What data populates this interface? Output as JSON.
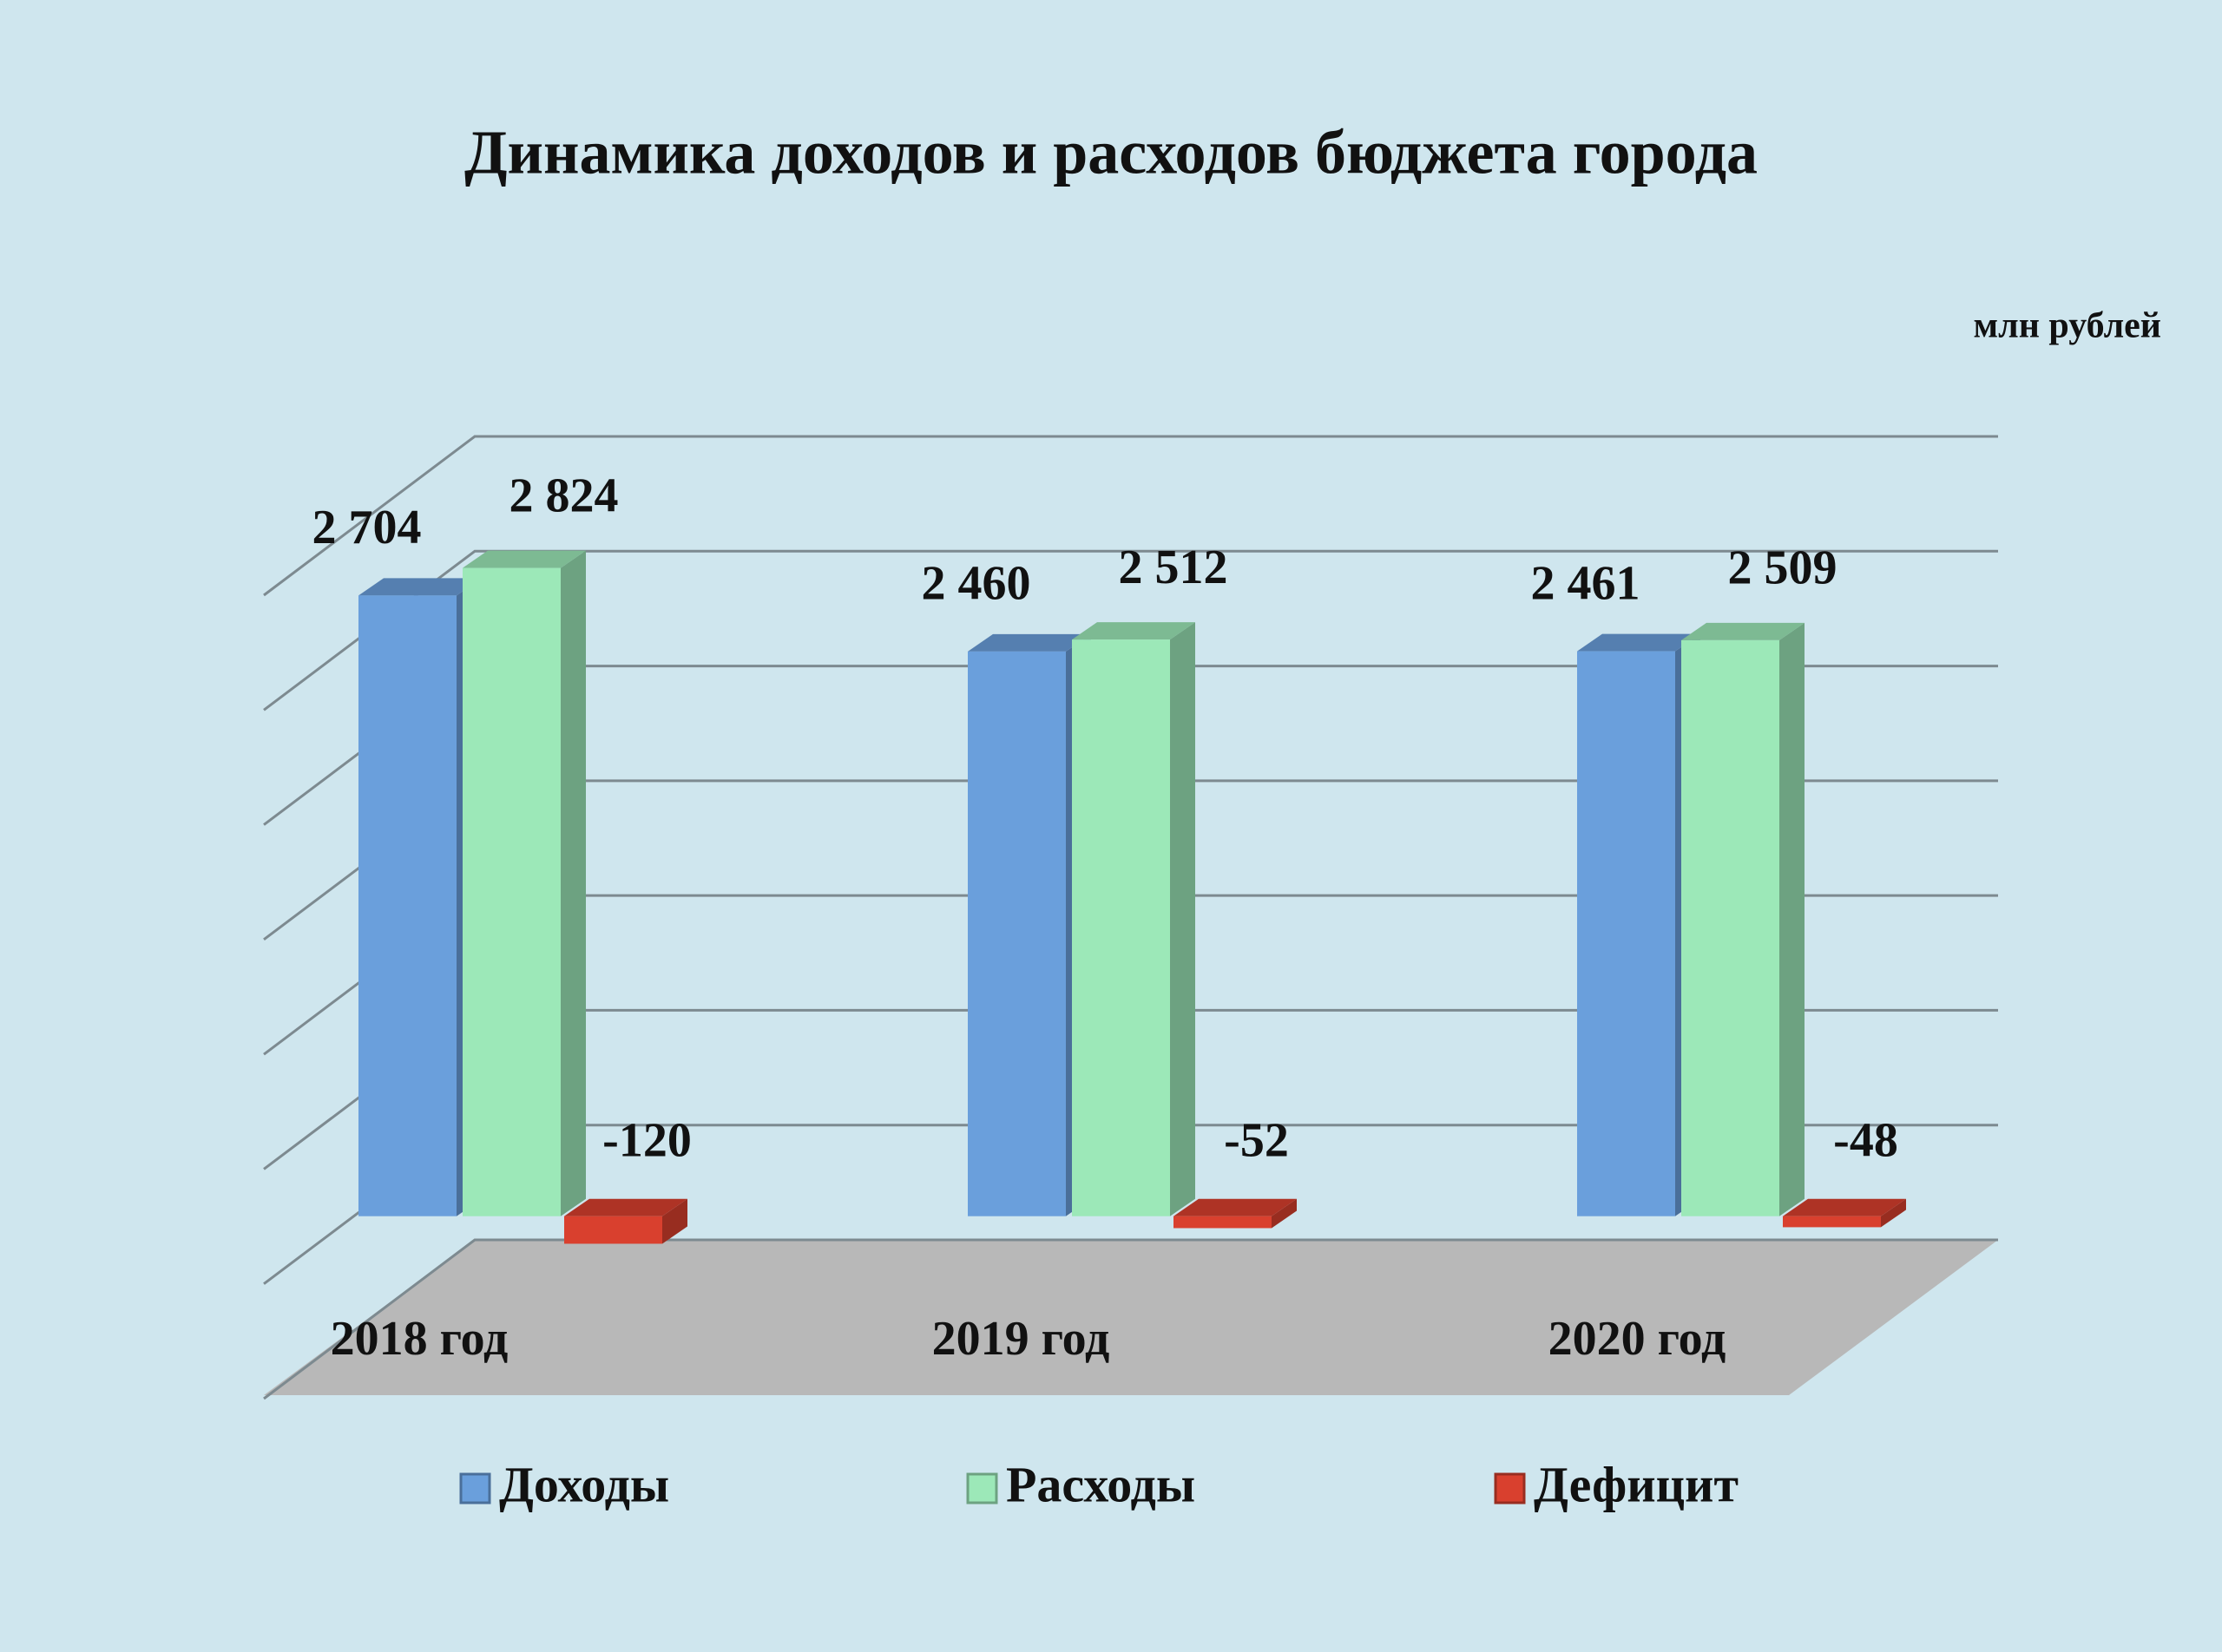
{
  "chart_data": {
    "type": "bar3d",
    "title": "Динамика  доходов  и расходов  бюджета  города",
    "unit_label": "млн рублей",
    "categories": [
      "2018 год",
      "2019 год",
      "2020 год"
    ],
    "series": [
      {
        "name": "Доходы",
        "color": "#6a9fdc",
        "values": [
          2704,
          2460,
          2461
        ],
        "value_labels": [
          "2 704",
          "2 460",
          "2 461"
        ]
      },
      {
        "name": "Расходы",
        "color": "#9ce8b8",
        "values": [
          2824,
          2512,
          2509
        ],
        "value_labels": [
          "2 824",
          "2 512",
          "2 509"
        ]
      },
      {
        "name": "Дефицит",
        "color": "#d9402e",
        "values": [
          -120,
          -52,
          -48
        ],
        "value_labels": [
          "-120",
          "-52",
          "-48"
        ]
      }
    ],
    "ylim": [
      -500,
      3000
    ],
    "yticks": [
      -500,
      0,
      500,
      1000,
      1500,
      2000,
      2500,
      3000
    ],
    "grid": true,
    "legend": "bottom"
  }
}
